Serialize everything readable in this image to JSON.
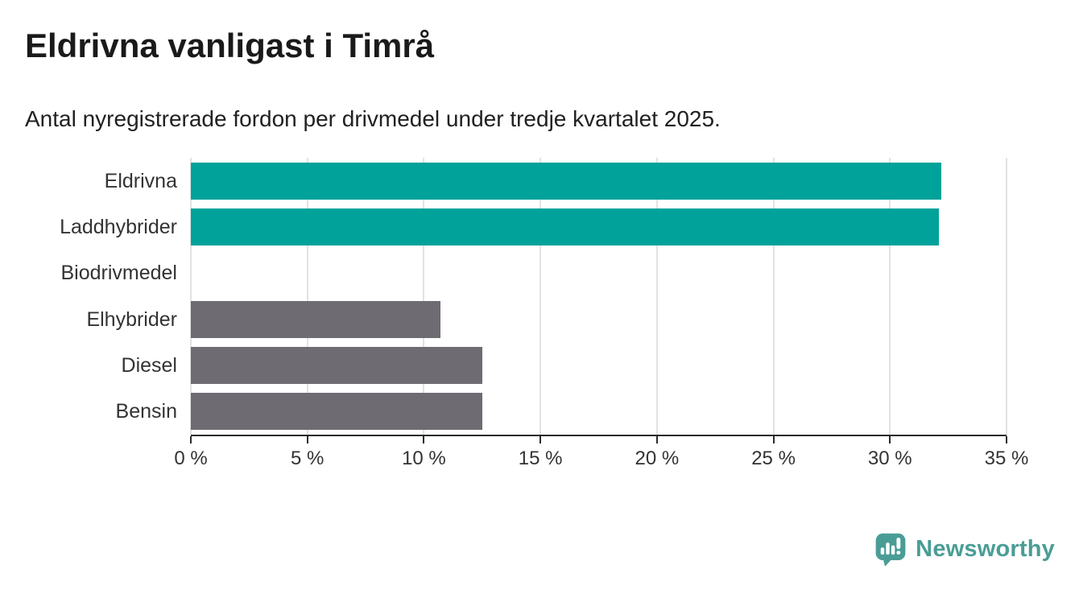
{
  "chart_data": {
    "type": "bar",
    "orientation": "horizontal",
    "title": "Eldrivna vanligast i Timrå",
    "subtitle": "Antal nyregistrerade fordon per drivmedel under tredje kvartalet 2025.",
    "categories": [
      "Eldrivna",
      "Laddhybrider",
      "Biodrivmedel",
      "Elhybrider",
      "Diesel",
      "Bensin"
    ],
    "values": [
      32.2,
      32.1,
      0,
      10.7,
      12.5,
      12.5
    ],
    "unit": "%",
    "xlabel": "",
    "ylabel": "",
    "xlim": [
      0,
      35
    ],
    "xtick_values": [
      0,
      5,
      10,
      15,
      20,
      25,
      30,
      35
    ],
    "xtick_labels": [
      "0 %",
      "5 %",
      "10 %",
      "15 %",
      "20 %",
      "25 %",
      "30 %",
      "35 %"
    ],
    "bar_colors": [
      "#00a29a",
      "#00a29a",
      "#6e6b73",
      "#6e6b73",
      "#6e6b73",
      "#6e6b73"
    ],
    "highlight_color": "#00a29a",
    "default_color": "#6e6b73",
    "grid": "vertical",
    "gridline_color": "#e2e2e2",
    "axis_color": "#2b2b2b",
    "legend": "none"
  },
  "logo": {
    "text": "Newsworthy",
    "icon": "newsworthy-pin-bar-chart-icon",
    "color": "#4a9d96"
  }
}
